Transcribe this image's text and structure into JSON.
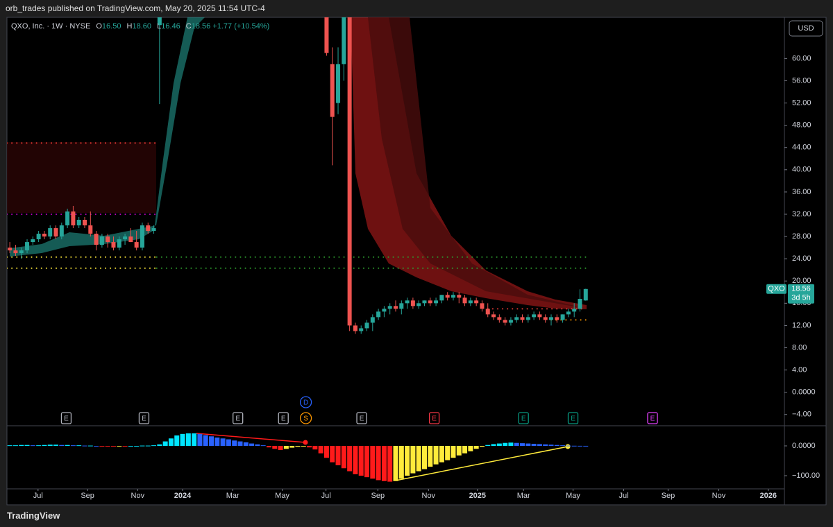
{
  "header": {
    "published": "orb_trades published on TradingView.com, May 20, 2025 11:54 UTC-4",
    "symbol": "QXO, Inc. · 1W · NYSE",
    "ohlc": [
      {
        "key": "O",
        "value": "16.50"
      },
      {
        "key": "H",
        "value": "18.60"
      },
      {
        "key": "L",
        "value": "16.46"
      },
      {
        "key": "C",
        "value": "18.56"
      }
    ],
    "change": "+1.77 (+10.54%)",
    "currency": "USD",
    "footer": "TradingView"
  },
  "chart_data": [
    {
      "type": "candlestick",
      "series": [
        {
          "name": "QXO",
          "color_up": "#26a69a",
          "color_down": "#ef5350",
          "x": [
            0,
            1,
            2,
            3,
            4,
            5,
            6,
            7,
            8,
            9,
            10,
            11,
            12,
            13,
            14,
            15,
            16,
            17,
            18,
            19,
            20,
            21,
            22,
            23,
            24,
            25,
            26,
            55,
            56,
            57,
            58,
            59,
            60,
            61,
            62,
            63,
            64,
            65,
            66,
            67,
            68,
            69,
            70,
            71,
            72,
            73,
            74,
            75,
            76,
            77,
            78,
            79,
            80,
            81,
            82,
            83,
            84,
            85,
            86,
            87,
            88,
            89,
            90,
            91,
            92,
            93,
            94,
            95,
            96,
            97,
            98,
            99,
            100
          ],
          "open": [
            26,
            25.5,
            25,
            25.5,
            27,
            27.5,
            28.5,
            28,
            29.5,
            28,
            30,
            32.5,
            30,
            31,
            30,
            28.5,
            26.5,
            28,
            27,
            26,
            27.5,
            28,
            27,
            26,
            30,
            29,
            66,
            68,
            59,
            52,
            59,
            68,
            12,
            11,
            11.5,
            12.5,
            13.5,
            14.5,
            15,
            15.5,
            15,
            16,
            16.5,
            15.5,
            16,
            16.5,
            16,
            16.5,
            17.5,
            17,
            17.5,
            17,
            16,
            16.5,
            16,
            15,
            14,
            13.5,
            13,
            12.5,
            13,
            13.5,
            13,
            13.5,
            14,
            13.5,
            13,
            13.5,
            13,
            14,
            14.5,
            15,
            16.5
          ],
          "high": [
            27,
            26.5,
            26,
            27.5,
            28,
            29,
            29,
            30,
            30,
            30.5,
            33,
            33.5,
            31.5,
            31.5,
            32.5,
            29,
            28.5,
            28.5,
            28,
            28,
            28.5,
            29.5,
            29,
            30.5,
            30.5,
            30,
            70,
            70,
            62,
            62,
            70,
            70,
            12.5,
            12,
            13,
            14,
            15,
            15.5,
            16,
            16.5,
            16.5,
            17,
            17,
            16.5,
            16.5,
            17,
            17,
            17.5,
            18,
            18,
            18,
            17.5,
            17,
            17,
            16.5,
            16,
            14.5,
            14,
            13.5,
            13.5,
            14,
            14,
            14,
            14.5,
            14.5,
            14,
            14,
            14,
            14,
            15,
            16,
            18.5,
            18.6
          ],
          "low": [
            25,
            24.5,
            24,
            25,
            26.5,
            27,
            27.5,
            27.5,
            27.5,
            27.5,
            29.5,
            29.5,
            29.5,
            29.5,
            28,
            25.5,
            26,
            26,
            25.5,
            25.5,
            26.5,
            27,
            25.5,
            25.5,
            28.5,
            28.5,
            51.8,
            60.5,
            40.8,
            50,
            56,
            11,
            10.5,
            10.5,
            11,
            11,
            13,
            13.5,
            14,
            14.5,
            14,
            15,
            15,
            15,
            15.5,
            15.5,
            15.5,
            16,
            16.5,
            16.5,
            16,
            15.5,
            15.5,
            15.5,
            14.5,
            13.5,
            13,
            12.5,
            12,
            12,
            12.5,
            12.5,
            12.5,
            13,
            13,
            12.5,
            12,
            12.5,
            12.5,
            13.5,
            13.5,
            14.5,
            16.46
          ],
          "close": [
            25.5,
            25,
            25.5,
            27,
            27.5,
            28.5,
            28,
            29.5,
            28,
            30,
            32.5,
            30,
            31,
            30,
            28.5,
            26.5,
            28,
            27,
            26,
            27.5,
            28,
            27,
            26,
            30,
            29,
            29.5,
            68,
            61,
            49.5,
            59,
            68,
            12,
            11,
            11.5,
            12.5,
            13.5,
            14.5,
            15,
            15.5,
            15,
            16,
            16.5,
            15.5,
            16,
            16.5,
            16,
            16.5,
            17.5,
            17,
            17.5,
            17,
            16,
            16.5,
            16,
            15,
            14,
            13.5,
            13,
            12.5,
            13,
            13.5,
            13,
            13.5,
            14,
            13.5,
            13,
            13.5,
            13,
            14,
            14.5,
            15,
            16.79,
            18.56
          ]
        }
      ],
      "last_price": {
        "value": 18.56,
        "countdown": "3d 5h",
        "color": "#26a69a"
      },
      "xlim": [
        -0.5,
        134.5
      ],
      "ylim": [
        -5.9,
        67.4
      ],
      "yticks": [
        {
          "value": -4,
          "label": "−4.00"
        },
        {
          "value": 0,
          "label": "0.0000"
        },
        {
          "value": 4,
          "label": "4.00"
        },
        {
          "value": 8,
          "label": "8.00"
        },
        {
          "value": 12,
          "label": "12.00"
        },
        {
          "value": 16,
          "label": "16.00"
        },
        {
          "value": 20,
          "label": "20.00"
        },
        {
          "value": 24,
          "label": "24.00"
        },
        {
          "value": 28,
          "label": "28.00"
        },
        {
          "value": 32,
          "label": "32.00"
        },
        {
          "value": 36,
          "label": "36.00"
        },
        {
          "value": 40,
          "label": "40.00"
        },
        {
          "value": 44,
          "label": "44.00"
        },
        {
          "value": 48,
          "label": "48.00"
        },
        {
          "value": 52,
          "label": "52.00"
        },
        {
          "value": 56,
          "label": "56.00"
        },
        {
          "value": 60,
          "label": "60.00"
        }
      ],
      "levels": [
        {
          "value": 44.8,
          "from": -0.5,
          "to": 25.5,
          "color": "#e53935"
        },
        {
          "value": 32,
          "from": -0.5,
          "to": 25.5,
          "color": "#c000c0"
        },
        {
          "value": 24.3,
          "from": -0.5,
          "to": 25.5,
          "color": "#ffeb3b"
        },
        {
          "value": 22.3,
          "from": -0.5,
          "to": 25.5,
          "color": "#ffeb3b"
        },
        {
          "value": 24.3,
          "from": 25.5,
          "to": 100,
          "color": "#2e9d2e"
        },
        {
          "value": 22.3,
          "from": 25.5,
          "to": 100,
          "color": "#2e9d2e"
        },
        {
          "value": 15,
          "from": 83,
          "to": 100,
          "color": "#e53935"
        },
        {
          "value": 13,
          "from": 94,
          "to": 100,
          "color": "#ff9800"
        }
      ],
      "events": [
        {
          "label": "E",
          "x": 9.8,
          "color": "#b2b5be",
          "shape": "box"
        },
        {
          "label": "E",
          "x": 23.3,
          "color": "#b2b5be",
          "shape": "box"
        },
        {
          "label": "E",
          "x": 39.6,
          "color": "#b2b5be",
          "shape": "box"
        },
        {
          "label": "E",
          "x": 47.5,
          "color": "#b2b5be",
          "shape": "box"
        },
        {
          "label": "S",
          "x": 51.4,
          "color": "#ff9800",
          "shape": "circle"
        },
        {
          "label": "D",
          "x": 51.4,
          "color": "#2962ff",
          "shape": "circle"
        },
        {
          "label": "E",
          "x": 61.1,
          "color": "#b2b5be",
          "shape": "box"
        },
        {
          "label": "E",
          "x": 73.7,
          "color": "#f23645",
          "shape": "box"
        },
        {
          "label": "E",
          "x": 89.2,
          "color": "#089981",
          "shape": "box"
        },
        {
          "label": "E",
          "x": 97.8,
          "color": "#089981",
          "shape": "box"
        },
        {
          "label": "E",
          "x": 111.6,
          "color": "#e040fb",
          "shape": "box"
        }
      ]
    },
    {
      "type": "histogram",
      "series": [
        {
          "x": [
            0,
            1,
            2,
            3,
            4,
            5,
            6,
            7,
            8,
            9,
            10,
            11,
            12,
            13,
            14,
            15,
            16,
            17,
            18,
            19,
            20,
            21,
            22,
            23,
            24,
            25,
            26,
            27,
            28,
            29,
            30,
            31,
            32,
            33,
            34,
            35,
            36,
            37,
            38,
            39,
            40,
            41,
            42,
            43,
            44,
            45,
            46,
            47,
            48,
            49,
            50,
            51,
            52,
            53,
            54,
            55,
            56,
            57,
            58,
            59,
            60,
            61,
            62,
            63,
            64,
            65,
            66,
            67,
            68,
            69,
            70,
            71,
            72,
            73,
            74,
            75,
            76,
            77,
            78,
            79,
            80,
            81,
            82,
            83,
            84,
            85,
            86,
            87,
            88,
            89,
            90,
            91,
            92,
            93,
            94,
            95,
            96,
            97,
            98,
            99,
            100
          ],
          "values": [
            2,
            2,
            3,
            3,
            2,
            2,
            3,
            4,
            4,
            3,
            3,
            2,
            2,
            1,
            1,
            0,
            -1,
            -2,
            -2,
            -1,
            -1,
            0,
            0,
            1,
            1,
            2,
            5,
            15,
            25,
            35,
            40,
            42,
            42,
            40,
            36,
            32,
            28,
            25,
            22,
            18,
            15,
            12,
            8,
            5,
            2,
            -5,
            -10,
            -14,
            -10,
            -6,
            -3,
            -2,
            -5,
            -12,
            -25,
            -40,
            -55,
            -65,
            -75,
            -85,
            -95,
            -100,
            -105,
            -110,
            -115,
            -118,
            -120,
            -118,
            -110,
            -100,
            -92,
            -85,
            -78,
            -70,
            -62,
            -55,
            -48,
            -40,
            -32,
            -25,
            -18,
            -10,
            -3,
            3,
            6,
            8,
            10,
            11,
            10,
            9,
            8,
            7,
            6,
            5,
            4,
            3,
            2,
            1,
            0.5,
            0.3,
            0.2
          ],
          "colors": {
            "rising_pos": "#00e5ff",
            "falling_pos": "#2962ff",
            "falling_neg": "#ff1a1a",
            "rising_neg": "#ffeb3b"
          }
        }
      ],
      "xlim": [
        -0.5,
        134.5
      ],
      "ylim": [
        -139.5,
        60.5
      ],
      "yticks": [
        {
          "value": -100,
          "label": "−100.00"
        },
        {
          "value": 0,
          "label": "0.0000"
        }
      ],
      "xticks": [
        {
          "value": 4.9,
          "label": "Jul"
        },
        {
          "value": 13.5,
          "label": "Sep"
        },
        {
          "value": 22.2,
          "label": "Nov"
        },
        {
          "value": 30,
          "label": "2024"
        },
        {
          "value": 38.7,
          "label": "Mar"
        },
        {
          "value": 47.3,
          "label": "May"
        },
        {
          "value": 54.9,
          "label": "Jul"
        },
        {
          "value": 63.9,
          "label": "Sep"
        },
        {
          "value": 72.7,
          "label": "Nov"
        },
        {
          "value": 81.2,
          "label": "2025"
        },
        {
          "value": 89.2,
          "label": "Mar"
        },
        {
          "value": 97.8,
          "label": "May"
        },
        {
          "value": 106.6,
          "label": "Jul"
        },
        {
          "value": 114.3,
          "label": "Sep"
        },
        {
          "value": 123.1,
          "label": "Nov"
        },
        {
          "value": 131.7,
          "label": "2026"
        }
      ]
    }
  ]
}
